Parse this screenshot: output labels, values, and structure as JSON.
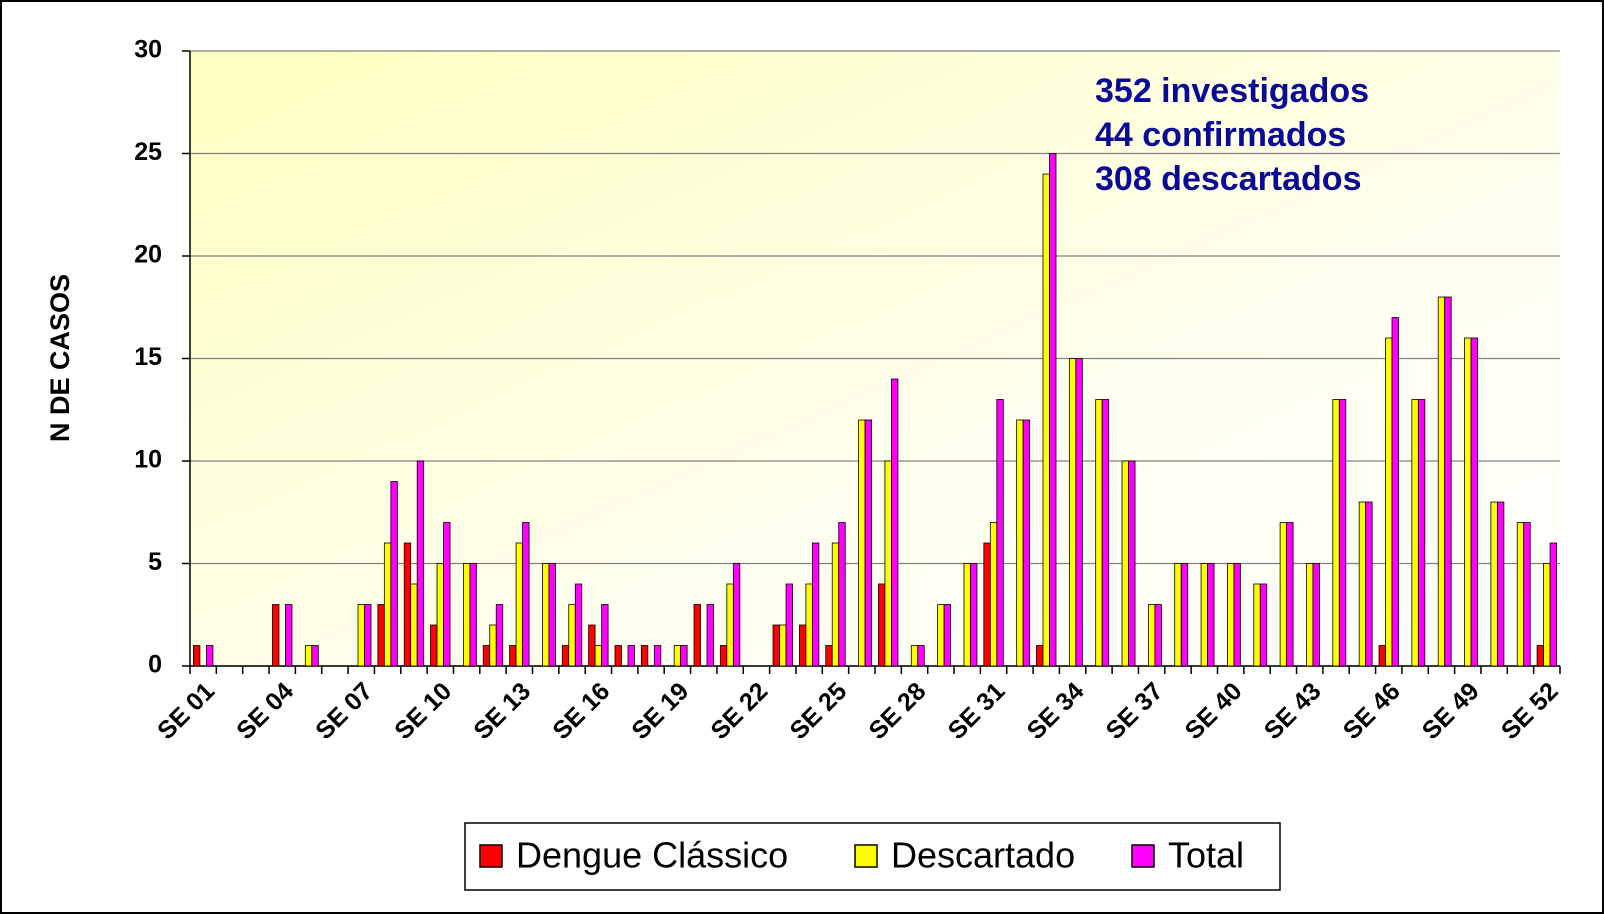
{
  "chart_data": {
    "type": "bar",
    "ylabel": "N DE CASOS",
    "annotations": [
      "352 investigados",
      "44 confirmados",
      "308 descartados"
    ],
    "categories": [
      "SE 01",
      null,
      null,
      "SE 04",
      null,
      null,
      "SE 07",
      null,
      null,
      "SE 10",
      null,
      null,
      "SE 13",
      null,
      null,
      "SE 16",
      null,
      null,
      "SE 19",
      null,
      null,
      "SE 22",
      null,
      null,
      "SE 25",
      null,
      null,
      "SE 28",
      null,
      null,
      "SE 31",
      null,
      null,
      "SE 34",
      null,
      null,
      "SE 37",
      null,
      null,
      "SE 40",
      null,
      null,
      "SE 43",
      null,
      null,
      "SE 46",
      null,
      null,
      "SE 49",
      null,
      null,
      "SE 52"
    ],
    "series": [
      {
        "name": "Dengue Clássico",
        "color": "#ff0000",
        "values": [
          1,
          0,
          0,
          3,
          0,
          0,
          0,
          3,
          6,
          2,
          0,
          1,
          1,
          0,
          1,
          2,
          1,
          1,
          0,
          3,
          1,
          0,
          2,
          2,
          1,
          0,
          4,
          0,
          0,
          0,
          6,
          0,
          1,
          0,
          0,
          0,
          0,
          0,
          0,
          0,
          0,
          0,
          0,
          0,
          0,
          1,
          0,
          0,
          0,
          0,
          0,
          1
        ]
      },
      {
        "name": "Descartado",
        "color": "#ffff00",
        "values": [
          0,
          0,
          0,
          0,
          1,
          0,
          3,
          6,
          4,
          5,
          5,
          2,
          6,
          5,
          3,
          1,
          0,
          0,
          1,
          0,
          4,
          0,
          2,
          4,
          6,
          12,
          10,
          1,
          3,
          5,
          7,
          12,
          24,
          15,
          13,
          10,
          3,
          5,
          5,
          5,
          4,
          7,
          5,
          13,
          8,
          16,
          13,
          18,
          16,
          8,
          7,
          5
        ]
      },
      {
        "name": "Total",
        "color": "#ff00ff",
        "values": [
          1,
          0,
          0,
          3,
          1,
          0,
          3,
          9,
          10,
          7,
          5,
          3,
          7,
          5,
          4,
          3,
          1,
          1,
          1,
          3,
          5,
          0,
          4,
          6,
          7,
          12,
          14,
          1,
          3,
          5,
          13,
          12,
          25,
          15,
          13,
          10,
          3,
          5,
          5,
          5,
          4,
          7,
          5,
          13,
          8,
          17,
          13,
          18,
          16,
          8,
          7,
          6
        ]
      }
    ],
    "ylim": [
      0,
      30
    ],
    "yticks": [
      0,
      5,
      10,
      15,
      20,
      25,
      30
    ],
    "grid": true,
    "legend": "bottom"
  }
}
